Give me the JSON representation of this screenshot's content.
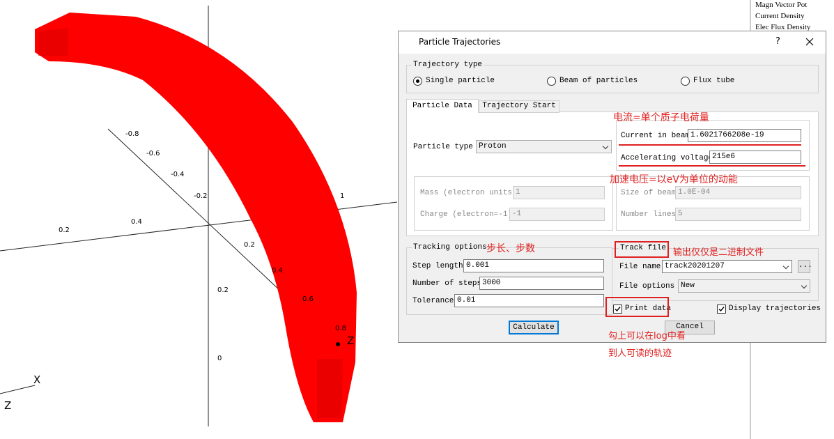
{
  "scene": {
    "axis_labels": [
      "-0.8",
      "-0.6",
      "-0.4",
      "-0.2",
      "0.2",
      "0.4",
      "1",
      "0.2",
      "0.4",
      "0.2",
      "0.6",
      "0.8",
      "0",
      "Z",
      "X",
      "Z"
    ]
  },
  "side_panel": {
    "items": [
      "Magn Vector Pot",
      "Current Density",
      "Elec Flux Density"
    ]
  },
  "dialog": {
    "title": "Particle Trajectories",
    "help": "?",
    "trajectory_type": {
      "label": "Trajectory type",
      "options": [
        "Single particle",
        "Beam of particles",
        "Flux tube"
      ]
    },
    "tabs": [
      "Particle Data",
      "Trajectory Start"
    ],
    "particle_type": {
      "label": "Particle type",
      "value": "Proton"
    },
    "current": {
      "label": "Current in beam",
      "value": "1.6021766208e-19"
    },
    "voltage": {
      "label": "Accelerating voltage",
      "value": "215e6"
    },
    "mass": {
      "label": "Mass (electron units)",
      "value": "1"
    },
    "charge": {
      "label": "Charge (electron=-1)",
      "value": "-1"
    },
    "size": {
      "label": "Size of beam",
      "value": "1.0E-04"
    },
    "lines": {
      "label": "Number lines",
      "value": "5"
    },
    "tracking": {
      "label": "Tracking options",
      "step_length": {
        "label": "Step length",
        "value": "0.001"
      },
      "steps": {
        "label": "Number of steps",
        "value": "3000"
      },
      "tolerance": {
        "label": "Tolerance",
        "value": "0.01"
      }
    },
    "track_file": {
      "label": "Track file",
      "file_name": {
        "label": "File name",
        "value": "track20201207"
      },
      "browse": "...",
      "file_options": {
        "label": "File options",
        "value": "New"
      }
    },
    "print_data": "Print data",
    "display": "Display trajectories",
    "calculate": "Calculate",
    "cancel": "Cancel"
  },
  "annotations": [
    "电流=单个质子电荷量",
    "加速电压=以eV为单位的动能",
    "步长、步数",
    "输出仅仅是二进制文件",
    "勾上可以在log中看",
    "到人可读的轨迹"
  ]
}
